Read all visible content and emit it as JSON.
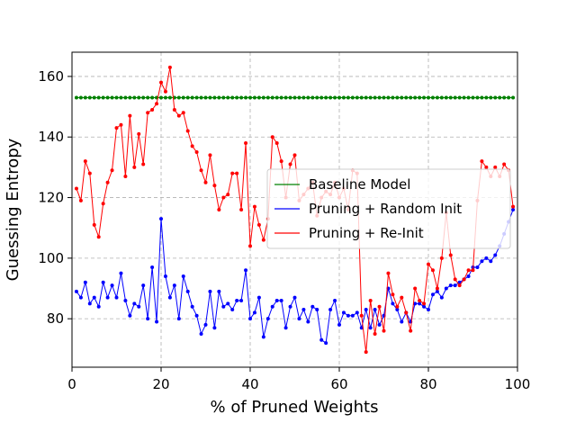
{
  "chart_data": {
    "type": "line",
    "xlabel": "% of Pruned Weights",
    "ylabel": "Guessing Entropy",
    "xlim": [
      0,
      100
    ],
    "ylim": [
      64,
      168
    ],
    "xticks": [
      0,
      20,
      40,
      60,
      80,
      100
    ],
    "yticks": [
      80,
      100,
      120,
      140,
      160
    ],
    "grid": true,
    "legend_position": "center-right",
    "x": [
      1,
      2,
      3,
      4,
      5,
      6,
      7,
      8,
      9,
      10,
      11,
      12,
      13,
      14,
      15,
      16,
      17,
      18,
      19,
      20,
      21,
      22,
      23,
      24,
      25,
      26,
      27,
      28,
      29,
      30,
      31,
      32,
      33,
      34,
      35,
      36,
      37,
      38,
      39,
      40,
      41,
      42,
      43,
      44,
      45,
      46,
      47,
      48,
      49,
      50,
      51,
      52,
      53,
      54,
      55,
      56,
      57,
      58,
      59,
      60,
      61,
      62,
      63,
      64,
      65,
      66,
      67,
      68,
      69,
      70,
      71,
      72,
      73,
      74,
      75,
      76,
      77,
      78,
      79,
      80,
      81,
      82,
      83,
      84,
      85,
      86,
      87,
      88,
      89,
      90,
      91,
      92,
      93,
      94,
      95,
      96,
      97,
      98,
      99
    ],
    "series": [
      {
        "name": "Baseline Model",
        "color": "#008000",
        "values": [
          153,
          153,
          153,
          153,
          153,
          153,
          153,
          153,
          153,
          153,
          153,
          153,
          153,
          153,
          153,
          153,
          153,
          153,
          153,
          153,
          153,
          153,
          153,
          153,
          153,
          153,
          153,
          153,
          153,
          153,
          153,
          153,
          153,
          153,
          153,
          153,
          153,
          153,
          153,
          153,
          153,
          153,
          153,
          153,
          153,
          153,
          153,
          153,
          153,
          153,
          153,
          153,
          153,
          153,
          153,
          153,
          153,
          153,
          153,
          153,
          153,
          153,
          153,
          153,
          153,
          153,
          153,
          153,
          153,
          153,
          153,
          153,
          153,
          153,
          153,
          153,
          153,
          153,
          153,
          153,
          153,
          153,
          153,
          153,
          153,
          153,
          153,
          153,
          153,
          153,
          153,
          153,
          153,
          153,
          153,
          153,
          153,
          153,
          153
        ]
      },
      {
        "name": "Pruning + Random Init",
        "color": "#0000ff",
        "values": [
          89,
          87,
          92,
          85,
          87,
          84,
          92,
          87,
          91,
          87,
          95,
          86,
          81,
          85,
          84,
          91,
          80,
          97,
          79,
          113,
          94,
          87,
          91,
          80,
          94,
          89,
          84,
          81,
          75,
          78,
          89,
          77,
          89,
          84,
          85,
          83,
          86,
          86,
          96,
          80,
          82,
          87,
          74,
          80,
          84,
          86,
          86,
          77,
          84,
          87,
          80,
          83,
          79,
          84,
          83,
          73,
          72,
          83,
          86,
          78,
          82,
          81,
          81,
          82,
          77,
          83,
          77,
          83,
          78,
          81,
          90,
          85,
          83,
          79,
          82,
          79,
          85,
          85,
          84,
          83,
          88,
          89,
          87,
          90,
          91,
          91,
          92,
          93,
          94,
          97,
          97,
          99,
          100,
          99,
          101,
          104,
          108,
          112,
          116
        ]
      },
      {
        "name": "Pruning + Re-Init",
        "color": "#ff0000",
        "values": [
          123,
          119,
          132,
          128,
          111,
          107,
          118,
          125,
          129,
          143,
          144,
          127,
          147,
          130,
          141,
          131,
          148,
          149,
          151,
          158,
          155,
          163,
          149,
          147,
          148,
          142,
          137,
          135,
          129,
          125,
          134,
          124,
          116,
          120,
          121,
          128,
          128,
          116,
          138,
          104,
          117,
          111,
          106,
          113,
          140,
          138,
          132,
          120,
          131,
          134,
          119,
          121,
          123,
          125,
          114,
          120,
          122,
          121,
          125,
          120,
          123,
          116,
          129,
          128,
          81,
          69,
          86,
          75,
          84,
          76,
          95,
          88,
          84,
          87,
          82,
          76,
          90,
          86,
          85,
          98,
          96,
          90,
          100,
          115,
          101,
          93,
          91,
          93,
          96,
          96,
          119,
          132,
          130,
          127,
          130,
          127,
          131,
          129,
          117
        ]
      }
    ]
  }
}
